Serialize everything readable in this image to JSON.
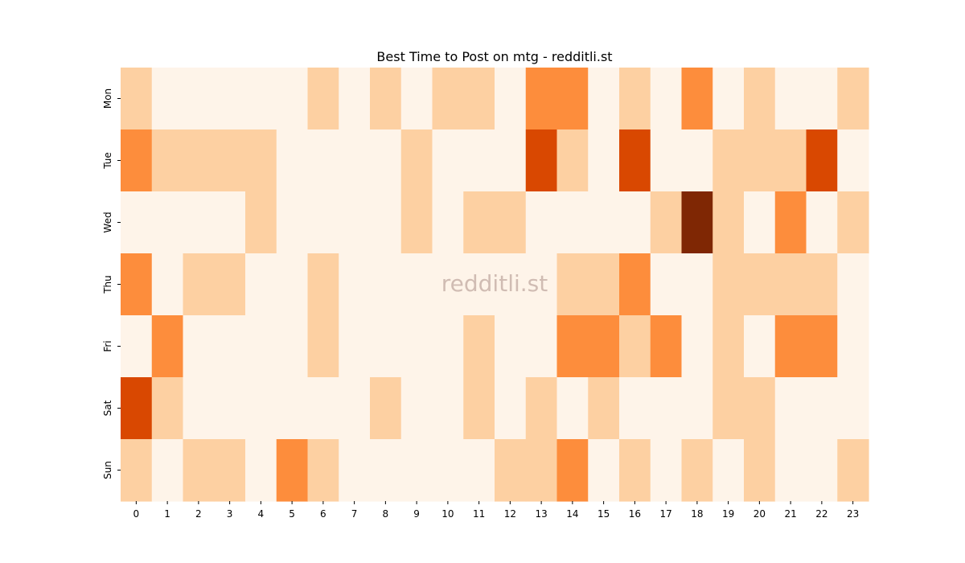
{
  "chart_data": {
    "type": "heatmap",
    "title": "Best Time to Post on mtg - redditli.st",
    "xlabel": "",
    "ylabel": "",
    "x_categories": [
      "0",
      "1",
      "2",
      "3",
      "4",
      "5",
      "6",
      "7",
      "8",
      "9",
      "10",
      "11",
      "12",
      "13",
      "14",
      "15",
      "16",
      "17",
      "18",
      "19",
      "20",
      "21",
      "22",
      "23"
    ],
    "y_categories": [
      "Mon",
      "Tue",
      "Wed",
      "Thu",
      "Fri",
      "Sat",
      "Sun"
    ],
    "values": [
      [
        1,
        0,
        0,
        0,
        0,
        0,
        1,
        0,
        1,
        0,
        1,
        1,
        0,
        2,
        2,
        0,
        1,
        0,
        2,
        0,
        1,
        0,
        0,
        1
      ],
      [
        2,
        1,
        1,
        1,
        1,
        0,
        0,
        0,
        0,
        1,
        0,
        0,
        0,
        3,
        1,
        0,
        3,
        0,
        0,
        1,
        1,
        1,
        3,
        0
      ],
      [
        0,
        0,
        0,
        0,
        1,
        0,
        0,
        0,
        0,
        1,
        0,
        1,
        1,
        0,
        0,
        0,
        0,
        1,
        4,
        1,
        0,
        2,
        0,
        1
      ],
      [
        2,
        0,
        1,
        1,
        0,
        0,
        1,
        0,
        0,
        0,
        0,
        0,
        0,
        0,
        1,
        1,
        2,
        0,
        0,
        1,
        1,
        1,
        1,
        0
      ],
      [
        0,
        2,
        0,
        0,
        0,
        0,
        1,
        0,
        0,
        0,
        0,
        1,
        0,
        0,
        2,
        2,
        1,
        2,
        0,
        1,
        0,
        2,
        2,
        0
      ],
      [
        3,
        1,
        0,
        0,
        0,
        0,
        0,
        0,
        1,
        0,
        0,
        1,
        0,
        1,
        0,
        1,
        0,
        0,
        0,
        1,
        1,
        0,
        0,
        0
      ],
      [
        1,
        0,
        1,
        1,
        0,
        2,
        1,
        0,
        0,
        0,
        0,
        0,
        1,
        1,
        2,
        0,
        1,
        0,
        1,
        0,
        1,
        0,
        0,
        1
      ]
    ],
    "colorscale": [
      "#fef4e9",
      "#fdd0a2",
      "#fd8d3c",
      "#d94801",
      "#7f2704"
    ],
    "colorbar": false,
    "grid": false,
    "legend": "none"
  },
  "watermark": "redditli.st"
}
